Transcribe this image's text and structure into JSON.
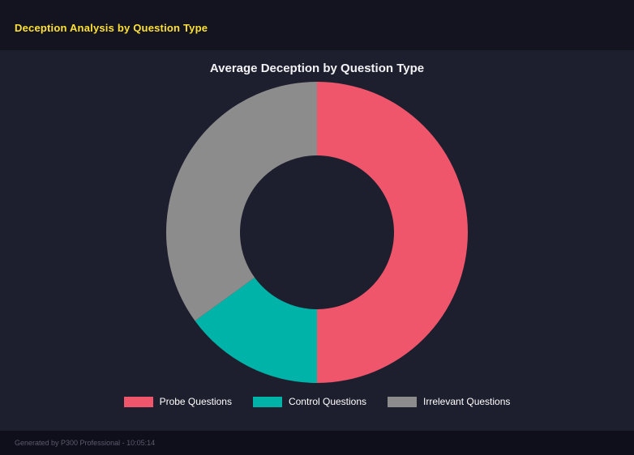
{
  "page": {
    "title": "Deception Analysis by Question Type",
    "footer": "Generated by P300 Professional - 10:05:14"
  },
  "chart_data": {
    "type": "pie",
    "subtype": "donut",
    "title": "Average Deception by Question Type",
    "categories": [
      "Probe Questions",
      "Control Questions",
      "Irrelevant Questions"
    ],
    "values": [
      50,
      15,
      35
    ],
    "colors": [
      "#f0566b",
      "#00b3a9",
      "#8c8c8c"
    ],
    "start_angle_deg": 0,
    "direction": "clockwise",
    "inner_radius_ratio": 0.51,
    "legend_position": "bottom",
    "hole_color": "#1e1f2e"
  },
  "colors": {
    "background": "#13141f",
    "panel": "#1e1f2e",
    "accent_yellow": "#ffe135",
    "chart_title_text": "#f2f2f5",
    "legend_text": "#ffffff",
    "footer_text": "#5a5c6e"
  }
}
